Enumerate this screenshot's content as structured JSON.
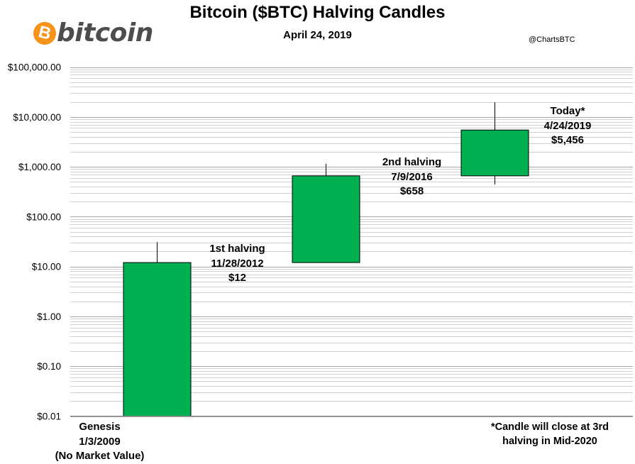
{
  "header": {
    "title": "Bitcoin ($BTC) Halving Candles",
    "subtitle": "April 24, 2019",
    "handle": "@ChartsBTC",
    "logo_text": "bitcoin",
    "logo_symbol": "B"
  },
  "chart_data": {
    "type": "candlestick",
    "title": "Bitcoin ($BTC) Halving Candles",
    "yscale": "log",
    "ylim": [
      0.01,
      100000
    ],
    "ytick_values": [
      0.01,
      0.1,
      1,
      10,
      100,
      1000,
      10000,
      100000
    ],
    "ytick_labels": [
      "$0.01",
      "$0.10",
      "$1.00",
      "$10.00",
      "$100.00",
      "$1,000.00",
      "$10,000.00",
      "$100,000.00"
    ],
    "grid": true,
    "candles": [
      {
        "name": "Genesis",
        "open": 0.01,
        "close": 12,
        "high": 31,
        "low": 0.01,
        "color": "#00b050"
      },
      {
        "name": "1st halving",
        "open": 12,
        "close": 658,
        "high": 1150,
        "low": 12,
        "color": "#00b050"
      },
      {
        "name": "2nd halving",
        "open": 658,
        "close": 5456,
        "high": 19700,
        "low": 440,
        "color": "#00b050"
      }
    ]
  },
  "annotations": {
    "genesis": {
      "line1": "Genesis",
      "line2": "1/3/2009",
      "line3": "(No Market Value)"
    },
    "first": {
      "line1": "1st halving",
      "line2": "11/28/2012",
      "line3": "$12"
    },
    "second": {
      "line1": "2nd halving",
      "line2": "7/9/2016",
      "line3": "$658"
    },
    "today": {
      "line1": "Today*",
      "line2": "4/24/2019",
      "line3": "$5,456"
    }
  },
  "footnote": {
    "line1": "*Candle will close at 3rd",
    "line2": "halving in Mid-2020"
  }
}
